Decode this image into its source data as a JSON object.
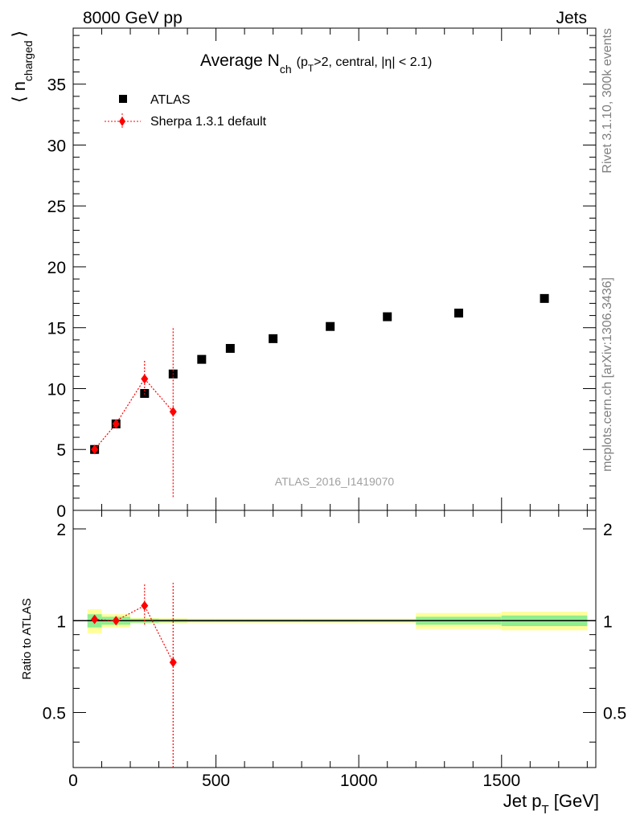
{
  "header": {
    "left": "8000 GeV pp",
    "right": "Jets"
  },
  "sidebar": {
    "rivet": "Rivet 3.1.10,  300k events",
    "mcplots": "mcplots.cern.ch [arXiv:1306.3436]"
  },
  "watermark": "ATLAS_2016_I1419070",
  "chart_data": [
    {
      "type": "scatter",
      "title": "Average N_ch (p_T>2, central, |η| < 2.1)",
      "title_parts": {
        "main": "Average N",
        "sub": "ch",
        "cond_open": "(p",
        "cond_sub": "T",
        "cond_rest": ">2, central, |η| < 2.1)"
      },
      "ylabel": "⟨ n_charged ⟩",
      "ylabel_parts": {
        "open": "⟨ n",
        "sub": "charged",
        "close": "⟩"
      },
      "xlim": [
        0,
        1830
      ],
      "ylim": [
        0,
        39.6
      ],
      "yticks": [
        0,
        5,
        10,
        15,
        20,
        25,
        30,
        35
      ],
      "ytick_labels": [
        "0",
        "5",
        "10",
        "15",
        "20",
        "25",
        "30",
        "35"
      ],
      "legend_position": "top-left",
      "series": [
        {
          "name": "ATLAS",
          "color": "#000000",
          "marker": "square",
          "x": [
            75,
            150,
            250,
            350,
            450,
            550,
            700,
            900,
            1100,
            1350,
            1650
          ],
          "y": [
            5.0,
            7.1,
            9.6,
            11.2,
            12.4,
            13.3,
            14.1,
            15.1,
            15.9,
            16.2,
            17.4
          ]
        },
        {
          "name": "Sherpa 1.3.1 default",
          "color": "#ff0000",
          "marker": "diamond",
          "line": "dotted",
          "x": [
            75,
            150,
            250,
            350
          ],
          "y": [
            5.0,
            7.1,
            10.8,
            8.1
          ],
          "yerr_low": [
            0.1,
            0.2,
            1.3,
            7.0
          ],
          "yerr_high": [
            0.1,
            0.2,
            1.5,
            7.0
          ]
        }
      ]
    },
    {
      "type": "line",
      "ylabel": "Ratio to ATLAS",
      "xlabel": "Jet p_T [GeV]",
      "xlabel_parts": {
        "main": "Jet p",
        "sub": "T",
        "rest": " [GeV]"
      },
      "xlim": [
        0,
        1830
      ],
      "ylim": [
        0.33,
        2.3
      ],
      "xticks": [
        0,
        500,
        1000,
        1500
      ],
      "xtick_labels": [
        "0",
        "500",
        "1000",
        "1500"
      ],
      "yticks": [
        0.5,
        1,
        2
      ],
      "ytick_labels": [
        "0.5",
        "1",
        "2"
      ],
      "reference_line": 1,
      "bands": {
        "bins": [
          [
            50,
            100
          ],
          [
            100,
            200
          ],
          [
            200,
            300
          ],
          [
            300,
            400
          ],
          [
            400,
            500
          ],
          [
            500,
            600
          ],
          [
            600,
            800
          ],
          [
            800,
            1000
          ],
          [
            1000,
            1200
          ],
          [
            1200,
            1500
          ],
          [
            1500,
            1800
          ]
        ],
        "stat_color": "#90ee90",
        "total_color": "#ffff99",
        "stat": [
          0.05,
          0.03,
          0.015,
          0.012,
          0.01,
          0.01,
          0.01,
          0.01,
          0.01,
          0.03,
          0.04
        ],
        "total": [
          0.09,
          0.05,
          0.02,
          0.018,
          0.015,
          0.015,
          0.015,
          0.015,
          0.015,
          0.06,
          0.07
        ]
      },
      "series": [
        {
          "name": "Sherpa 1.3.1 default",
          "color": "#ff0000",
          "marker": "diamond",
          "line": "dotted",
          "x": [
            75,
            150,
            250,
            350
          ],
          "y": [
            1.01,
            1.0,
            1.12,
            0.73
          ],
          "yerr_low": [
            0.02,
            0.02,
            0.15,
            0.4
          ],
          "yerr_high": [
            0.02,
            0.02,
            0.2,
            0.6
          ]
        }
      ]
    }
  ]
}
